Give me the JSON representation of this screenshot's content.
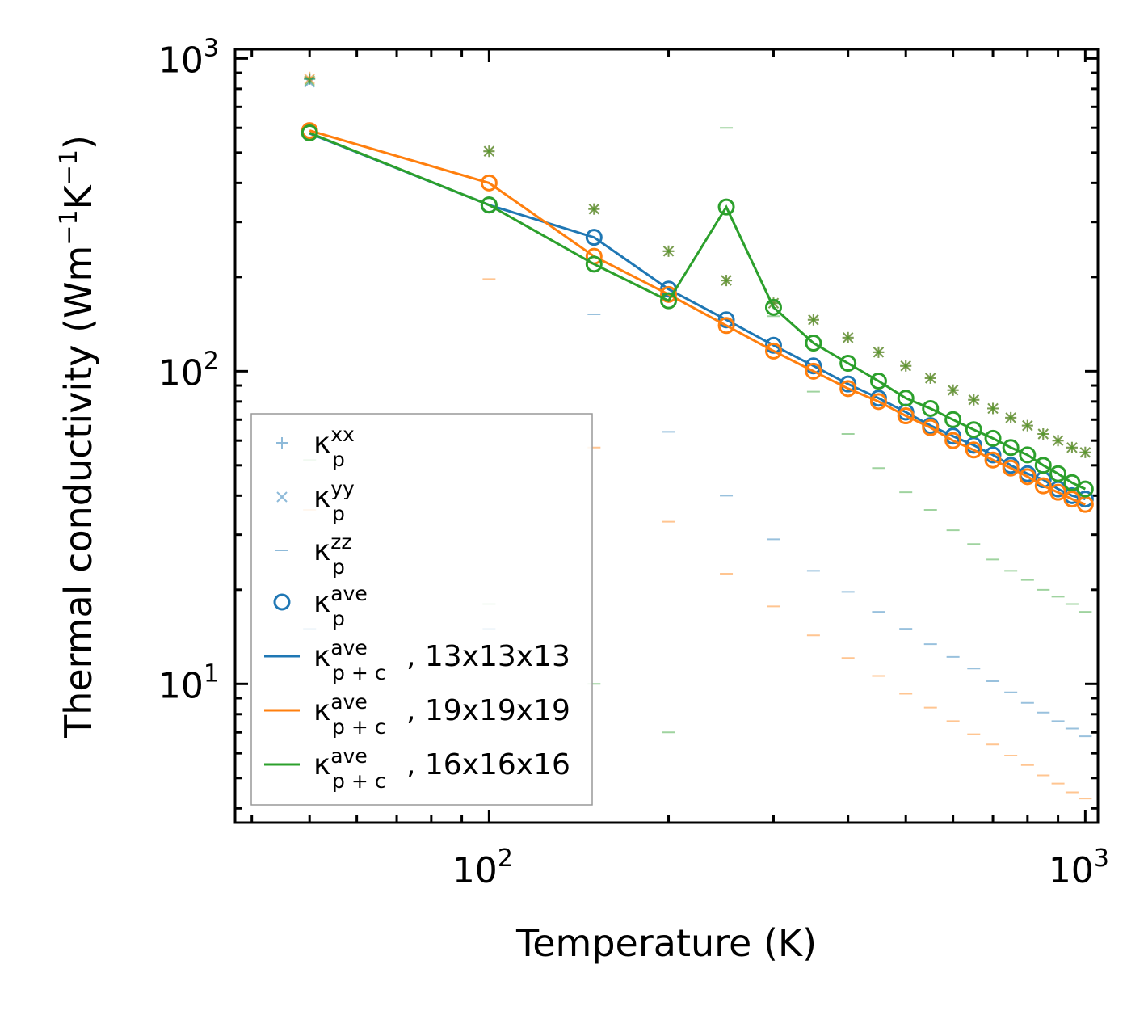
{
  "chart_data": {
    "type": "line",
    "xscale": "log",
    "yscale": "log",
    "xlabel": "Temperature (K)",
    "ylabel_main": "Thermal conductivity (Wm",
    "ylabel_exp1": "−1",
    "ylabel_mid": "K",
    "ylabel_exp2": "−1",
    "ylabel_end": ")",
    "xlim": [
      37.5,
      1050
    ],
    "ylim": [
      3.6,
      1070
    ],
    "x_ticks": [
      {
        "value": 100,
        "base": "10",
        "exp": "2"
      },
      {
        "value": 1000,
        "base": "10",
        "exp": "3"
      }
    ],
    "y_ticks": [
      {
        "value": 10,
        "base": "10",
        "exp": "1"
      },
      {
        "value": 100,
        "base": "10",
        "exp": "2"
      },
      {
        "value": 1000,
        "base": "10",
        "exp": "3"
      }
    ],
    "colors": {
      "c13": "#1f77b4",
      "c19": "#ff7f0e",
      "c16": "#2ca02c"
    },
    "temperatures": [
      50,
      100,
      150,
      200,
      250,
      300,
      350,
      400,
      450,
      500,
      550,
      600,
      650,
      700,
      750,
      800,
      850,
      900,
      950,
      1000
    ],
    "series": [
      {
        "name": "13x13x13",
        "color_key": "c13",
        "kappa_p_xx": [
          860,
          505,
          330,
          242,
          195,
          165,
          146,
          128,
          115,
          104,
          95,
          87,
          81,
          76,
          71,
          67,
          63,
          60,
          57,
          55
        ],
        "kappa_p_yy": [
          840,
          505,
          330,
          242,
          195,
          165,
          146,
          128,
          115,
          104,
          95,
          87,
          81,
          76,
          71,
          67,
          63,
          60,
          57,
          55
        ],
        "kappa_p_zz": [
          15,
          15,
          152,
          64,
          40,
          29,
          23,
          19.7,
          17,
          15,
          13.4,
          12.2,
          11.2,
          10.2,
          9.4,
          8.7,
          8.1,
          7.6,
          7.2,
          6.8
        ],
        "kappa_p_ave": [
          580,
          340,
          268,
          183,
          146,
          121,
          104,
          91,
          82,
          74,
          67,
          62,
          58,
          54,
          50,
          47,
          45,
          42,
          40,
          39
        ],
        "kappa_pc_ave": [
          576,
          340,
          268,
          183,
          146,
          121,
          104,
          91,
          82,
          74,
          67,
          62,
          58,
          54,
          50,
          47,
          45,
          42,
          40,
          39
        ]
      },
      {
        "name": "19x19x19",
        "color_key": "c19",
        "kappa_p_xx": [
          870,
          505,
          330,
          242,
          195,
          165,
          146,
          128,
          115,
          104,
          95,
          87,
          81,
          76,
          71,
          67,
          63,
          60,
          57,
          55
        ],
        "kappa_p_yy": [
          860,
          505,
          330,
          242,
          195,
          165,
          146,
          128,
          115,
          104,
          95,
          87,
          81,
          76,
          71,
          67,
          63,
          60,
          57,
          55
        ],
        "kappa_p_zz": [
          36,
          197,
          57,
          33,
          22.5,
          17.7,
          14.3,
          12.1,
          10.6,
          9.3,
          8.4,
          7.6,
          6.9,
          6.4,
          5.9,
          5.5,
          5.1,
          4.8,
          4.5,
          4.3
        ],
        "kappa_p_ave": [
          588,
          400,
          233,
          176,
          140,
          116,
          100,
          88,
          80,
          72,
          66,
          60,
          56,
          52,
          49,
          46,
          43,
          41,
          39,
          37.5
        ],
        "kappa_pc_ave": [
          588,
          400,
          233,
          176,
          140,
          116,
          100,
          88,
          80,
          72,
          66,
          60,
          56,
          52,
          49,
          46,
          43,
          41,
          39,
          37.5
        ]
      },
      {
        "name": "16x16x16",
        "color_key": "c16",
        "kappa_p_xx": [
          860,
          505,
          330,
          242,
          195,
          165,
          146,
          128,
          115,
          104,
          95,
          87,
          81,
          76,
          71,
          67,
          63,
          60,
          57,
          55
        ],
        "kappa_p_yy": [
          850,
          505,
          330,
          242,
          195,
          165,
          146,
          128,
          115,
          104,
          95,
          87,
          81,
          76,
          71,
          67,
          63,
          60,
          57,
          55
        ],
        "kappa_p_zz": [
          52,
          18,
          10,
          7,
          600,
          150,
          86,
          63,
          49,
          41,
          36,
          31,
          28,
          25,
          23,
          21.5,
          20,
          19,
          18,
          17
        ],
        "kappa_p_ave": [
          578,
          340,
          220,
          168,
          335,
          160,
          123,
          106,
          93,
          82,
          76,
          70,
          65,
          61,
          57,
          54,
          50,
          47,
          44,
          42
        ],
        "kappa_pc_ave": [
          578,
          340,
          220,
          168,
          335,
          160,
          123,
          106,
          93,
          82,
          76,
          70,
          65,
          61,
          57,
          54,
          50,
          47,
          44,
          42
        ]
      }
    ],
    "legend": {
      "placement": "lower-left",
      "entries": [
        {
          "symbol": "+",
          "sup": "xx",
          "sub": "p",
          "suffix": ""
        },
        {
          "symbol": "×",
          "sup": "yy",
          "sub": "p",
          "suffix": ""
        },
        {
          "symbol": "–",
          "sup": "zz",
          "sub": "p",
          "suffix": ""
        },
        {
          "symbol": "o",
          "sup": "ave",
          "sub": "p",
          "suffix": ""
        },
        {
          "symbol": "line-c13",
          "sup": "ave",
          "sub": "p + c",
          "suffix": ", 13x13x13"
        },
        {
          "symbol": "line-c19",
          "sup": "ave",
          "sub": "p + c",
          "suffix": ", 19x19x19"
        },
        {
          "symbol": "line-c16",
          "sup": "ave",
          "sub": "p + c",
          "suffix": ", 16x16x16"
        }
      ],
      "kappa": "κ"
    }
  }
}
